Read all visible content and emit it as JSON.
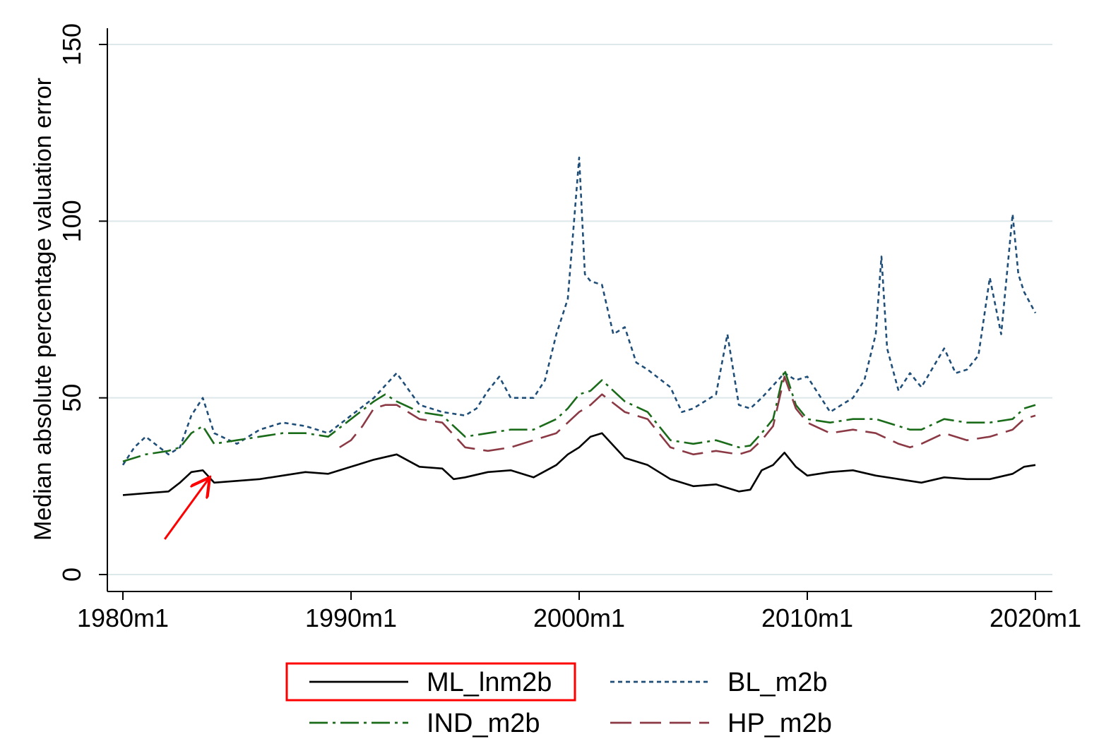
{
  "chart_data": {
    "type": "line",
    "title": "",
    "xlabel": "",
    "ylabel": "Median absolute percentage valuation error",
    "xlim": [
      "1980m1",
      "2020m1"
    ],
    "ylim": [
      0,
      150
    ],
    "x_ticks": [
      "1980m1",
      "1990m1",
      "2000m1",
      "2010m1",
      "2020m1"
    ],
    "y_ticks": [
      0,
      50,
      100,
      150
    ],
    "grid": "horizontal",
    "legend_position": "bottom",
    "colors": {
      "ML_lnm2b": "#000000",
      "BL_m2b": "#1f4e79",
      "IND_m2b": "#1a6b1a",
      "HP_m2b": "#8b3a45",
      "grid": "#dde8ea",
      "annotation": "#ff0000"
    },
    "series": [
      {
        "name": "ML_lnm2b",
        "style": "solid",
        "x": [
          "1980m1",
          "1981m1",
          "1982m1",
          "1982m7",
          "1983m1",
          "1983m7",
          "1984m1",
          "1985m1",
          "1986m1",
          "1987m1",
          "1988m1",
          "1989m1",
          "1990m1",
          "1991m1",
          "1992m1",
          "1993m1",
          "1994m1",
          "1994m7",
          "1995m1",
          "1996m1",
          "1997m1",
          "1998m1",
          "1999m1",
          "1999m7",
          "2000m1",
          "2000m7",
          "2001m1",
          "2002m1",
          "2003m1",
          "2004m1",
          "2005m1",
          "2006m1",
          "2007m1",
          "2007m7",
          "2008m1",
          "2008m7",
          "2009m1",
          "2009m7",
          "2010m1",
          "2011m1",
          "2012m1",
          "2013m1",
          "2014m1",
          "2014m7",
          "2015m1",
          "2016m1",
          "2017m1",
          "2018m1",
          "2019m1",
          "2019m7",
          "2020m1"
        ],
        "y": [
          22.5,
          23,
          23.5,
          26,
          29,
          29.5,
          26,
          26.5,
          27,
          28,
          29,
          28.5,
          30.5,
          32.5,
          34,
          30.5,
          30,
          27,
          27.5,
          29,
          29.5,
          27.5,
          31,
          34,
          36,
          39,
          40,
          33,
          31,
          27,
          25,
          25.5,
          23.5,
          24,
          29.5,
          31,
          34.5,
          30.5,
          28,
          29,
          29.5,
          28,
          27,
          26.5,
          26,
          27.5,
          27,
          27,
          28.5,
          30.5,
          31
        ]
      },
      {
        "name": "BL_m2b",
        "style": "short-dash",
        "x": [
          "1980m1",
          "1980m7",
          "1981m1",
          "1982m1",
          "1982m7",
          "1983m1",
          "1983m7",
          "1984m1",
          "1985m1",
          "1985m7",
          "1986m1",
          "1987m1",
          "1988m1",
          "1989m1",
          "1990m1",
          "1991m1",
          "1992m1",
          "1993m1",
          "1994m1",
          "1995m1",
          "1995m7",
          "1996m1",
          "1996m7",
          "1997m1",
          "1998m1",
          "1998m7",
          "1999m1",
          "1999m7",
          "2000m1",
          "2000m4",
          "2000m7",
          "2001m1",
          "2001m7",
          "2002m1",
          "2002m7",
          "2003m1",
          "2004m1",
          "2004m7",
          "2005m1",
          "2006m1",
          "2006m7",
          "2007m1",
          "2007m7",
          "2008m1",
          "2009m1",
          "2009m7",
          "2010m1",
          "2011m1",
          "2012m1",
          "2012m7",
          "2013m1",
          "2013m4",
          "2013m7",
          "2014m1",
          "2014m7",
          "2015m1",
          "2016m1",
          "2016m7",
          "2017m1",
          "2017m7",
          "2018m1",
          "2018m7",
          "2019m1",
          "2019m4",
          "2019m7",
          "2020m1"
        ],
        "y": [
          31,
          36,
          39,
          34,
          36,
          45,
          50,
          40,
          37,
          39,
          41,
          43,
          42,
          40,
          45,
          50,
          57,
          48,
          46,
          45,
          47,
          52,
          56,
          50,
          50,
          55,
          68,
          78,
          118,
          85,
          83,
          82,
          68,
          70,
          60,
          58,
          53,
          46,
          47,
          51,
          68,
          48,
          47,
          50,
          57,
          55,
          56,
          46,
          50,
          55,
          68,
          90,
          64,
          52,
          57,
          53,
          64,
          57,
          58,
          62,
          84,
          68,
          102,
          85,
          80,
          74
        ]
      },
      {
        "name": "IND_m2b",
        "style": "dash-dot",
        "x": [
          "1980m1",
          "1981m1",
          "1982m1",
          "1982m7",
          "1983m1",
          "1983m7",
          "1984m1",
          "1985m1",
          "1986m1",
          "1987m1",
          "1988m1",
          "1989m1",
          "1990m1",
          "1991m1",
          "1991m7",
          "1992m1",
          "1993m1",
          "1994m1",
          "1995m1",
          "1996m1",
          "1997m1",
          "1998m1",
          "1999m1",
          "1999m7",
          "2000m1",
          "2000m7",
          "2001m1",
          "2002m1",
          "2003m1",
          "2004m1",
          "2005m1",
          "2006m1",
          "2007m1",
          "2007m7",
          "2008m1",
          "2008m7",
          "2009m1",
          "2009m7",
          "2010m1",
          "2011m1",
          "2012m1",
          "2013m1",
          "2014m1",
          "2014m7",
          "2015m1",
          "2016m1",
          "2017m1",
          "2018m1",
          "2019m1",
          "2019m7",
          "2020m1"
        ],
        "y": [
          32,
          34,
          35,
          36,
          40,
          42,
          37,
          38,
          39,
          40,
          40,
          39,
          44,
          49,
          51,
          49,
          46,
          45,
          39,
          40,
          41,
          41,
          44,
          47,
          51,
          52,
          55,
          49,
          46,
          38,
          37,
          38,
          36,
          36.5,
          40,
          44,
          58,
          48,
          44,
          43,
          44,
          44,
          42,
          41,
          41,
          44,
          43,
          43,
          44,
          47,
          48
        ]
      },
      {
        "name": "HP_m2b",
        "style": "long-dash",
        "x": [
          "1989m7",
          "1990m1",
          "1990m7",
          "1991m1",
          "1991m7",
          "1992m1",
          "1993m1",
          "1994m1",
          "1995m1",
          "1996m1",
          "1997m1",
          "1998m1",
          "1999m1",
          "1999m7",
          "2000m1",
          "2000m7",
          "2001m1",
          "2002m1",
          "2003m1",
          "2004m1",
          "2005m1",
          "2006m1",
          "2007m1",
          "2007m7",
          "2008m1",
          "2008m7",
          "2009m1",
          "2009m7",
          "2010m1",
          "2011m1",
          "2012m1",
          "2013m1",
          "2014m1",
          "2014m7",
          "2015m1",
          "2016m1",
          "2017m1",
          "2018m1",
          "2019m1",
          "2019m7",
          "2020m1"
        ],
        "y": [
          36,
          38,
          42,
          47,
          48,
          48,
          44,
          43,
          36,
          35,
          36,
          38,
          40,
          43,
          46,
          48,
          51,
          46,
          44,
          36,
          34,
          35,
          34,
          35,
          38,
          42,
          56,
          47,
          43,
          40,
          41,
          40,
          37,
          36,
          37,
          40,
          38,
          39,
          41,
          44,
          45
        ]
      }
    ],
    "legend": [
      {
        "label": "ML_lnm2b",
        "boxed": true
      },
      {
        "label": "BL_m2b",
        "boxed": false
      },
      {
        "label": "IND_m2b",
        "boxed": false
      },
      {
        "label": "HP_m2b",
        "boxed": false
      }
    ],
    "annotations": [
      {
        "type": "arrow",
        "points_to": {
          "x": "1983m10",
          "y": 27
        },
        "from": {
          "x": "1981m11",
          "y": 10
        }
      }
    ]
  }
}
